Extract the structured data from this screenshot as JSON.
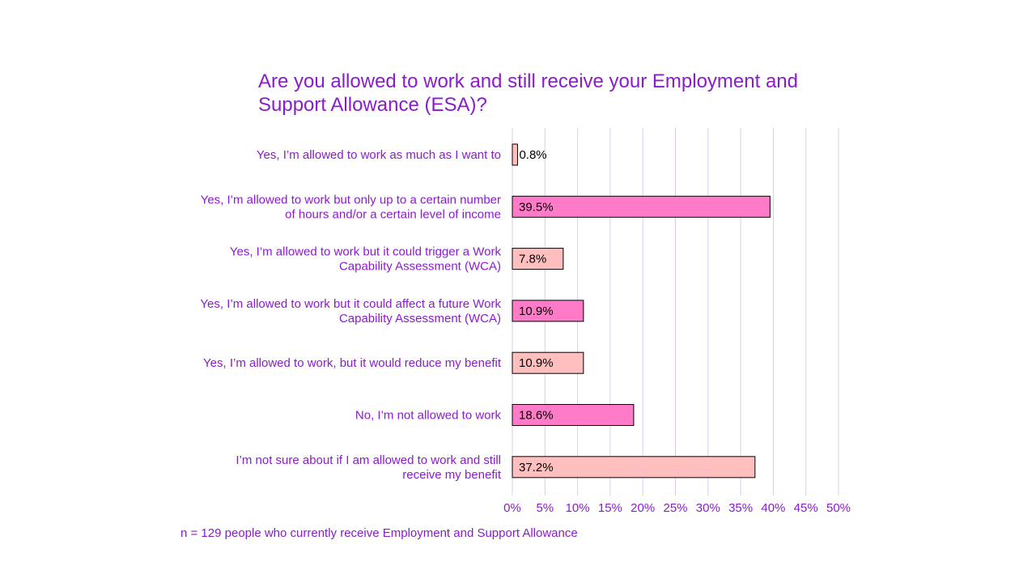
{
  "chart_data": {
    "type": "bar",
    "orientation": "horizontal",
    "title": "Are you allowed to work and still receive your Employment and Support Allowance (ESA)?",
    "categories": [
      [
        "Yes, I’m allowed to work as much as I want to"
      ],
      [
        "Yes, I’m allowed to work but only up to a certain number",
        "of hours and/or a certain level of income"
      ],
      [
        "Yes, I’m allowed to work but it could trigger a Work",
        "Capability Assessment (WCA)"
      ],
      [
        "Yes, I’m allowed to work but it could affect a future Work",
        "Capability Assessment (WCA)"
      ],
      [
        "Yes, I’m allowed to work, but it would reduce my benefit"
      ],
      [
        "No, I’m not allowed to work"
      ],
      [
        "I’m not sure about if I am allowed to work and still",
        "receive my benefit"
      ]
    ],
    "values": [
      0.8,
      39.5,
      7.8,
      10.9,
      10.9,
      18.6,
      37.2
    ],
    "data_labels": [
      "0.8%",
      "39.5%",
      "7.8%",
      "10.9%",
      "10.9%",
      "18.6%",
      "37.2%"
    ],
    "xlim": [
      0,
      50
    ],
    "x_ticks": [
      "0%",
      "5%",
      "10%",
      "15%",
      "20%",
      "25%",
      "30%",
      "35%",
      "40%",
      "45%",
      "50%"
    ],
    "grid": true,
    "bar_colors": [
      "#ffbfbf",
      "#ff7bc8",
      "#ffbfbf",
      "#ff7bc8",
      "#ffbfbf",
      "#ff7bc8",
      "#ffbfbf"
    ],
    "text_color": "#8a1ccc",
    "gridline_color": "#dccbec",
    "note": "n = 129 people who currently receive Employment and Support Allowance"
  }
}
